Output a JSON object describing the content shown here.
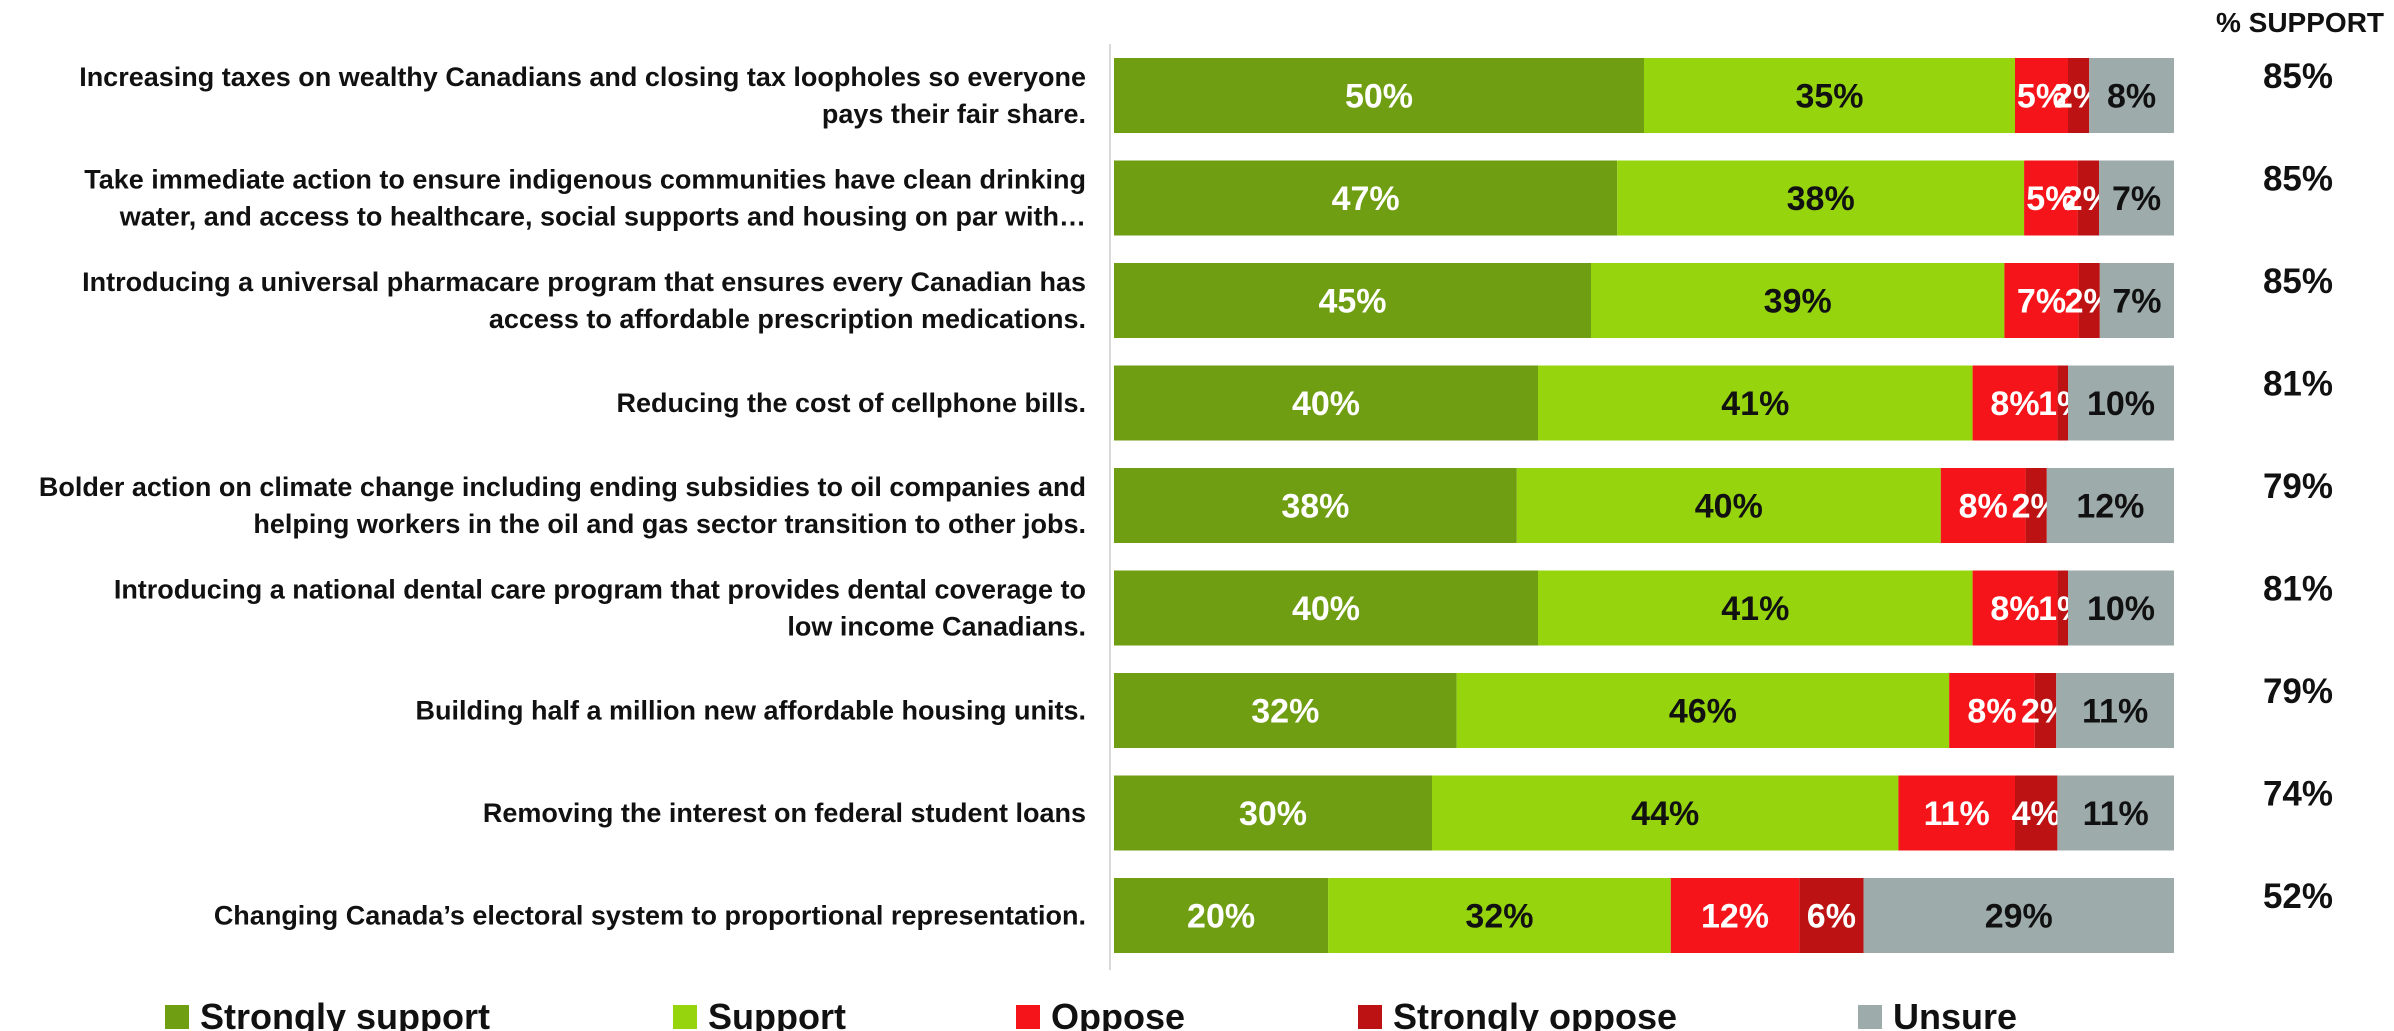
{
  "chart_data": {
    "type": "bar",
    "orientation": "horizontal",
    "stacked": true,
    "support_header": "% SUPPORT",
    "categories": [
      [
        "Increasing taxes on wealthy Canadians and closing tax loopholes so everyone",
        "pays their fair share."
      ],
      [
        "Take immediate action to ensure indigenous communities have clean drinking",
        "water, and access to healthcare, social supports and housing on par with…"
      ],
      [
        "Introducing a universal pharmacare program that ensures every Canadian has",
        "access to affordable prescription medications."
      ],
      [
        "Reducing the cost of cellphone bills."
      ],
      [
        "Bolder action on climate change including ending subsidies to oil companies and",
        "helping workers in the oil and gas sector transition to other jobs."
      ],
      [
        "Introducing a national dental care program that provides dental coverage to",
        "low income Canadians."
      ],
      [
        "Building half a million new affordable housing units."
      ],
      [
        "Removing the interest on federal student loans"
      ],
      [
        "Changing Canada’s electoral system to proportional representation."
      ]
    ],
    "series": [
      {
        "name": "Strongly support",
        "color": "#6f9e12",
        "label_color": "#ffffff",
        "values": [
          50,
          47,
          45,
          40,
          38,
          40,
          32,
          30,
          20
        ]
      },
      {
        "name": "Support",
        "color": "#96d40e",
        "label_color": "#111111",
        "values": [
          35,
          38,
          39,
          41,
          40,
          41,
          46,
          44,
          32
        ]
      },
      {
        "name": "Oppose",
        "color": "#f4141a",
        "label_color": "#ffffff",
        "values": [
          5,
          5,
          7,
          8,
          8,
          8,
          8,
          11,
          12
        ]
      },
      {
        "name": "Strongly oppose",
        "color": "#bd1213",
        "label_color": "#ffffff",
        "values": [
          2,
          2,
          2,
          1,
          2,
          1,
          2,
          4,
          6
        ]
      },
      {
        "name": "Unsure",
        "color": "#9dabaa",
        "label_color": "#111111",
        "values": [
          8,
          7,
          7,
          10,
          12,
          10,
          11,
          11,
          29
        ]
      }
    ],
    "support_totals": [
      "85%",
      "85%",
      "85%",
      "81%",
      "79%",
      "81%",
      "79%",
      "74%",
      "52%"
    ],
    "value_suffix": "%",
    "legend_position": "bottom",
    "grid": false
  }
}
